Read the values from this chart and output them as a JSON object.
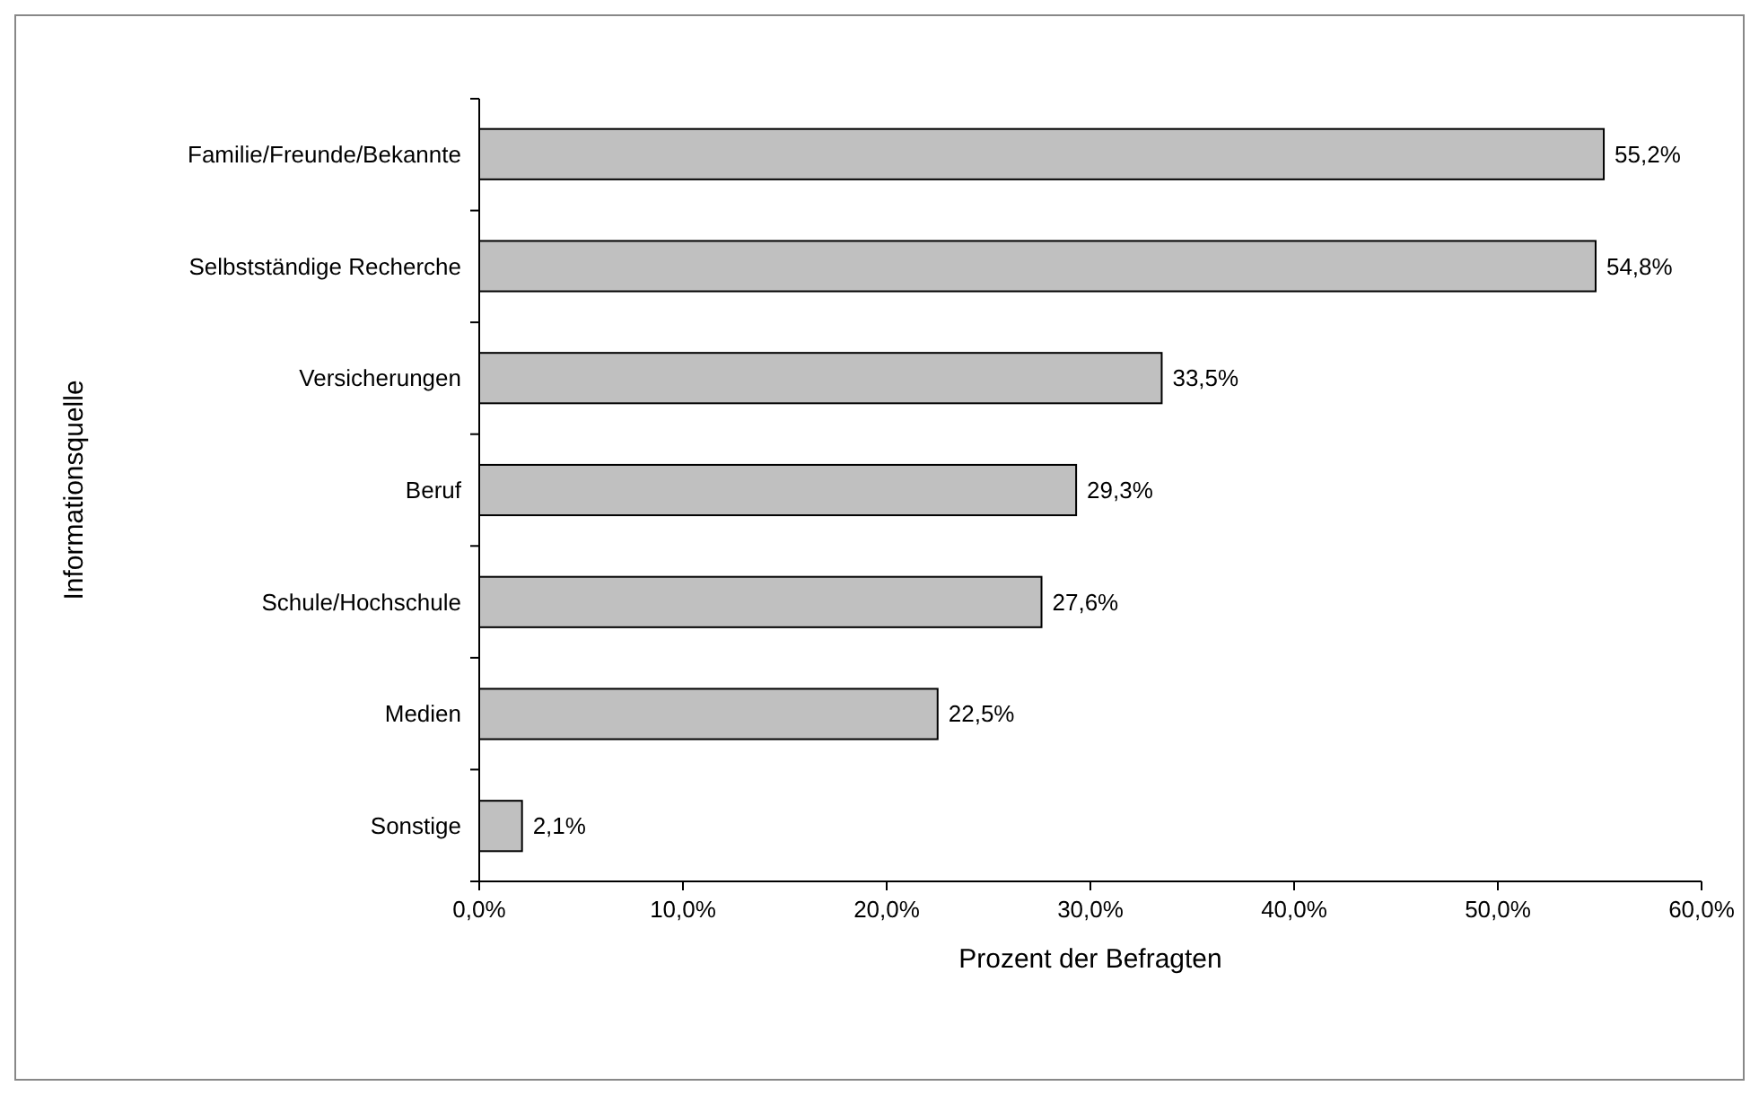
{
  "chart_data": {
    "type": "bar",
    "orientation": "horizontal",
    "xlabel": "Prozent der Befragten",
    "ylabel": "Informationsquelle",
    "categories": [
      "Familie/Freunde/Bekannte",
      "Selbstständige Recherche",
      "Versicherungen",
      "Beruf",
      "Schule/Hochschule",
      "Medien",
      "Sonstige"
    ],
    "values": [
      55.2,
      54.8,
      33.5,
      29.3,
      27.6,
      22.5,
      2.1
    ],
    "value_labels": [
      "55,2%",
      "54,8%",
      "33,5%",
      "29,3%",
      "27,6%",
      "22,5%",
      "2,1%"
    ],
    "color": "#c0c0c0",
    "xlim": [
      0,
      60
    ],
    "xticks": [
      {
        "value": 0,
        "label": "0,0%"
      },
      {
        "value": 10,
        "label": "10,0%"
      },
      {
        "value": 20,
        "label": "20,0%"
      },
      {
        "value": 30,
        "label": "30,0%"
      },
      {
        "value": 40,
        "label": "40,0%"
      },
      {
        "value": 50,
        "label": "50,0%"
      },
      {
        "value": 60,
        "label": "60,0%"
      }
    ],
    "grid": false
  }
}
